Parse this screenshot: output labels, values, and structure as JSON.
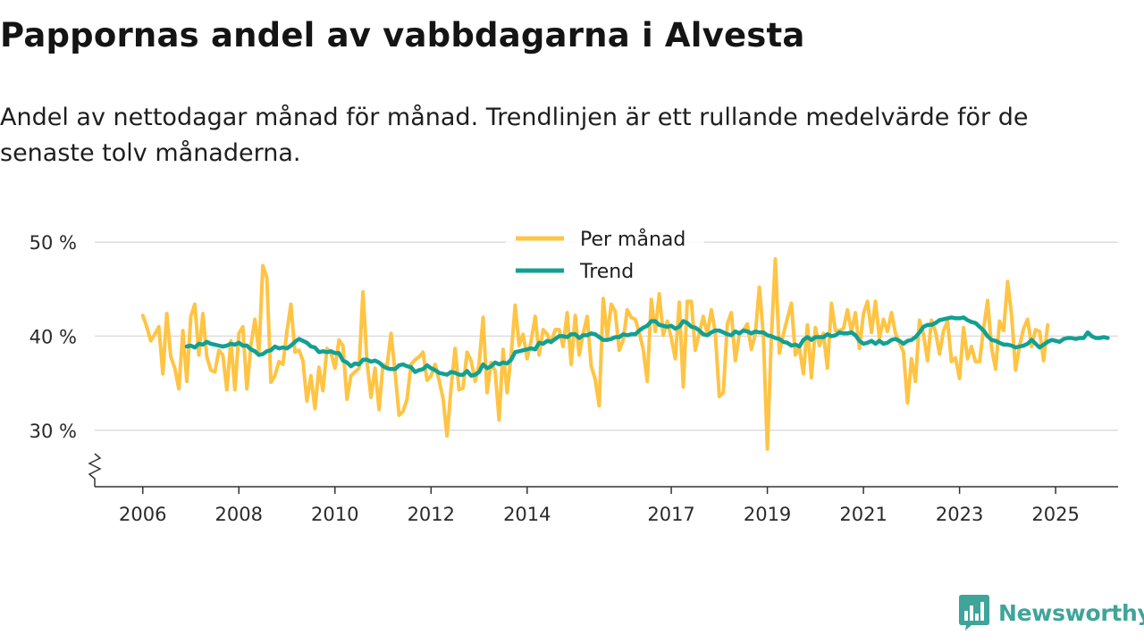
{
  "title": "Pappornas andel av vabbdagarna i Alvesta",
  "subtitle": "Andel av nettodagar månad för månad. Trendlinjen är ett rullande medelvärde för de senaste tolv månaderna.",
  "brand": {
    "name": "Newsworthy",
    "icon": "newsworthy-logo-icon",
    "color": "#3fa49a"
  },
  "colors": {
    "monthly": "#ffc444",
    "trend": "#12a093",
    "grid": "#dedede",
    "axis": "#333333"
  },
  "chart_data": {
    "type": "line",
    "title": "Pappornas andel av vabbdagarna i Alvesta",
    "xlabel": "",
    "ylabel": "",
    "x_range": [
      2005.0,
      2026.3
    ],
    "ylim": [
      24,
      52
    ],
    "y_ticks": [
      30,
      40,
      50
    ],
    "y_tick_labels": [
      "30 %",
      "40 %",
      "50 %"
    ],
    "x_ticks": [
      2006,
      2008,
      2010,
      2012,
      2014,
      2017,
      2019,
      2021,
      2023,
      2025
    ],
    "x_tick_labels": [
      "2006",
      "2008",
      "2010",
      "2012",
      "2014",
      "2017",
      "2019",
      "2021",
      "2023",
      "2025"
    ],
    "legend": {
      "placement": "top-center",
      "entries": [
        "Per månad",
        "Trend"
      ]
    },
    "series": [
      {
        "name": "Per månad",
        "start_year": 2006.0,
        "step_months": 1,
        "values": [
          42.2,
          41.0,
          39.5,
          40.2,
          41.0,
          36.0,
          42.4,
          37.8,
          36.6,
          34.4,
          40.6,
          35.2,
          42.1,
          43.4,
          38.0,
          42.4,
          37.8,
          36.4,
          36.2,
          38.5,
          38.0,
          34.3,
          39.5,
          34.3,
          40.3,
          41.0,
          34.4,
          39.0,
          41.8,
          38.3,
          47.5,
          46.2,
          35.1,
          35.8,
          37.3,
          37.0,
          40.5,
          43.4,
          38.3,
          38.5,
          37.4,
          33.1,
          35.8,
          32.3,
          36.7,
          34.2,
          38.7,
          38.2,
          36.6,
          39.6,
          39.0,
          33.3,
          35.8,
          36.2,
          36.6,
          44.7,
          37.3,
          33.5,
          36.6,
          32.2,
          37.0,
          36.8,
          40.3,
          36.2,
          31.6,
          32.0,
          33.3,
          37.0,
          37.5,
          37.8,
          38.3,
          35.3,
          35.8,
          37.0,
          35.3,
          33.4,
          29.4,
          34.5,
          38.7,
          34.3,
          34.5,
          38.3,
          37.4,
          35.2,
          37.0,
          42.0,
          34.0,
          37.2,
          36.3,
          31.1,
          38.6,
          34.0,
          38.0,
          43.3,
          39.0,
          40.2,
          37.6,
          39.5,
          42.1,
          38.0,
          40.7,
          40.2,
          39.3,
          40.7,
          40.7,
          38.9,
          42.5,
          37.0,
          42.2,
          38.0,
          40.3,
          42.1,
          36.8,
          35.4,
          32.6,
          44.0,
          40.0,
          43.4,
          42.6,
          38.5,
          39.6,
          42.8,
          42.0,
          41.8,
          40.4,
          38.6,
          35.2,
          43.9,
          40.5,
          44.5,
          40.1,
          41.6,
          39.8,
          37.6,
          43.6,
          34.6,
          43.7,
          43.7,
          38.5,
          40.3,
          42.1,
          40.2,
          42.8,
          40.4,
          33.6,
          34.0,
          41.3,
          42.5,
          37.4,
          40.2,
          40.6,
          41.3,
          38.6,
          40.2,
          45.2,
          40.1,
          28.0,
          40.0,
          48.2,
          38.2,
          40.2,
          41.9,
          43.5,
          38.0,
          38.8,
          36.0,
          41.2,
          35.6,
          40.9,
          39.0,
          40.3,
          36.6,
          43.5,
          40.6,
          40.6,
          40.8,
          42.8,
          40.5,
          42.5,
          38.7,
          42.4,
          43.7,
          40.4,
          43.7,
          39.8,
          41.8,
          40.5,
          42.5,
          40.3,
          39.3,
          38.3,
          32.9,
          37.6,
          35.2,
          41.7,
          40.2,
          37.4,
          41.7,
          40.5,
          38.1,
          40.6,
          41.6,
          37.3,
          37.7,
          35.5,
          40.9,
          37.6,
          38.9,
          37.3,
          37.3,
          40.8,
          43.8,
          38.8,
          36.5,
          41.6,
          40.6,
          45.8,
          42.3,
          36.4,
          39.0,
          40.8,
          41.8,
          38.9,
          40.7,
          40.5,
          37.4,
          41.2
        ]
      },
      {
        "name": "Trend",
        "start_year": 2006.917,
        "step_months": 1,
        "values": [
          38.9,
          39.0,
          38.8,
          39.2,
          39.1,
          39.4,
          39.2,
          39.1,
          39.0,
          38.9,
          39.0,
          39.2,
          39.1,
          39.3,
          39.0,
          39.0,
          38.6,
          38.4,
          38.0,
          38.1,
          38.4,
          38.5,
          38.9,
          38.7,
          38.8,
          38.7,
          39.0,
          39.4,
          39.7,
          39.5,
          39.3,
          38.9,
          38.8,
          38.3,
          38.4,
          38.3,
          38.4,
          38.2,
          38.2,
          37.4,
          37.2,
          36.8,
          37.1,
          37.0,
          37.5,
          37.5,
          37.3,
          37.4,
          37.2,
          36.8,
          36.6,
          36.5,
          36.5,
          36.9,
          37.0,
          36.8,
          36.7,
          36.2,
          36.4,
          36.5,
          36.9,
          36.6,
          36.4,
          36.1,
          36.0,
          35.9,
          36.2,
          36.1,
          35.9,
          35.9,
          36.3,
          35.8,
          35.9,
          36.2,
          37.0,
          36.6,
          36.8,
          37.2,
          37.0,
          37.2,
          37.1,
          37.5,
          38.3,
          38.4,
          38.5,
          38.6,
          38.7,
          38.6,
          39.3,
          39.2,
          39.5,
          39.4,
          39.7,
          40.0,
          40.0,
          39.9,
          40.2,
          40.2,
          39.8,
          40.1,
          40.1,
          40.3,
          40.2,
          39.9,
          39.6,
          39.6,
          39.7,
          39.9,
          39.9,
          40.2,
          40.1,
          40.2,
          40.2,
          40.6,
          40.9,
          41.1,
          41.6,
          41.6,
          41.2,
          41.1,
          41.0,
          41.1,
          40.8,
          41.0,
          41.6,
          41.4,
          41.0,
          40.9,
          40.6,
          40.2,
          40.1,
          40.4,
          40.6,
          40.6,
          40.4,
          40.2,
          40.1,
          40.5,
          40.3,
          40.6,
          40.5,
          40.3,
          40.5,
          40.4,
          40.4,
          40.1,
          40.0,
          39.8,
          39.7,
          39.4,
          39.3,
          39.0,
          39.1,
          38.9,
          39.6,
          39.9,
          39.6,
          39.9,
          39.9,
          39.9,
          40.2,
          40.0,
          40.1,
          40.4,
          40.3,
          40.3,
          40.4,
          40.1,
          39.5,
          39.2,
          39.3,
          39.5,
          39.2,
          39.5,
          39.2,
          39.3,
          39.6,
          39.7,
          39.5,
          39.2,
          39.5,
          39.6,
          39.9,
          40.4,
          41.0,
          41.2,
          41.2,
          41.4,
          41.7,
          41.8,
          41.9,
          42.0,
          41.9,
          41.9,
          42.0,
          41.7,
          41.5,
          41.4,
          41.0,
          40.6,
          40.0,
          39.6,
          39.5,
          39.3,
          39.1,
          39.1,
          39.0,
          38.8,
          38.9,
          39.0,
          39.2,
          39.6,
          39.2,
          38.8,
          39.1,
          39.4,
          39.6,
          39.5,
          39.4,
          39.7,
          39.8,
          39.8,
          39.7,
          39.8,
          39.8,
          40.4,
          40.0,
          39.8,
          39.8,
          39.9,
          39.8
        ]
      }
    ]
  }
}
